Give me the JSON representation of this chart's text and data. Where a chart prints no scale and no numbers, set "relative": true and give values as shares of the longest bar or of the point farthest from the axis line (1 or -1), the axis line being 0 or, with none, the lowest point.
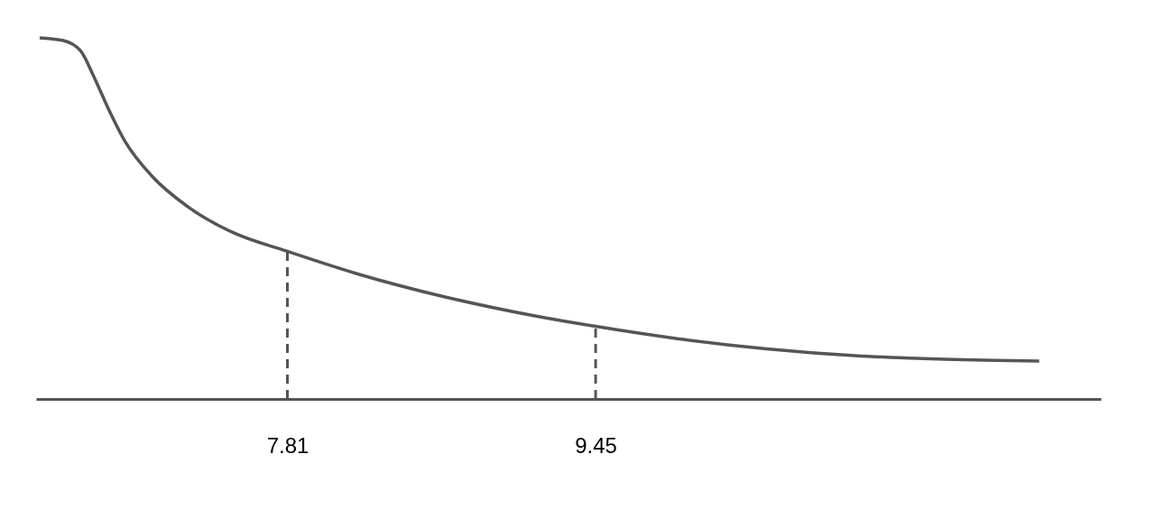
{
  "chart_data": {
    "type": "line",
    "relative": true,
    "x": [
      6.492,
      6.615,
      6.71,
      6.781,
      6.853,
      6.947,
      7.09,
      7.279,
      7.516,
      7.81,
      8.18,
      8.654,
      9.128,
      9.45,
      9.886,
      10.36,
      10.83,
      11.31,
      11.81
    ],
    "series": [
      {
        "color": "#555555",
        "values": [
          1.0,
          0.993,
          0.964,
          0.892,
          0.809,
          0.713,
          0.617,
          0.533,
          0.462,
          0.409,
          0.347,
          0.282,
          0.23,
          0.201,
          0.167,
          0.139,
          0.12,
          0.11,
          0.105
        ]
      }
    ],
    "xlim": [
      6.473,
      12.138
    ],
    "xticks": [
      7.81,
      9.45
    ],
    "grid": false,
    "marker": "none",
    "line_style": "solid",
    "ref_lines": [
      {
        "axis": "x",
        "value": 7.81,
        "line_style": "dashed",
        "color": "#555555"
      },
      {
        "axis": "x",
        "value": 9.45,
        "line_style": "dashed",
        "color": "#555555"
      }
    ]
  }
}
